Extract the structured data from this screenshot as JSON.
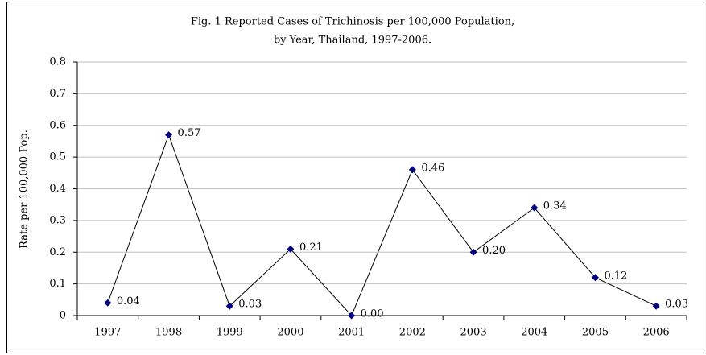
{
  "chart_data": {
    "type": "line",
    "title": [
      "Fig. 1 Reported Cases of Trichinosis per 100,000 Population,",
      "by Year, Thailand, 1997-2006."
    ],
    "y_label": "Rate per 100,000 Pop.",
    "categories": [
      "1997",
      "1998",
      "1999",
      "2000",
      "2001",
      "2002",
      "2003",
      "2004",
      "2005",
      "2006"
    ],
    "values": [
      0.04,
      0.57,
      0.03,
      0.21,
      0,
      0.46,
      0.2,
      0.34,
      0.12,
      0.03
    ],
    "value_labels": [
      "0.04",
      "0.57",
      "0.03",
      "0.21",
      "0.00",
      "0.46",
      "0.20",
      "0.34",
      "0.12",
      "0.03"
    ],
    "line_color": "#000000",
    "marker_color": "#000080",
    "ylim": [
      0,
      0.8
    ],
    "yticks": [
      0,
      0.1,
      0.2,
      0.3,
      0.4,
      0.5,
      0.6,
      0.7,
      0.8
    ],
    "grid": true
  }
}
